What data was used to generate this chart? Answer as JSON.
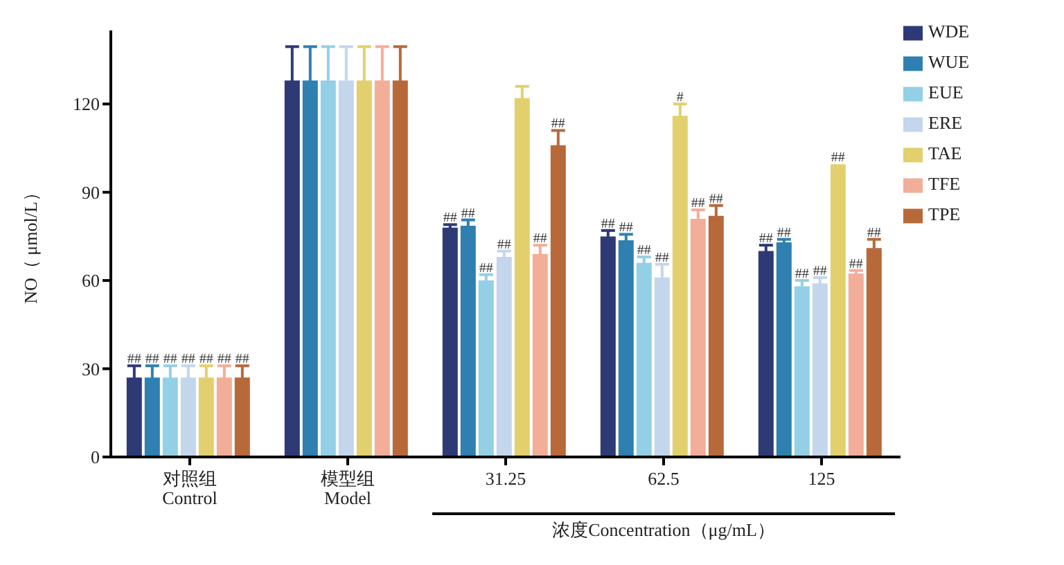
{
  "chart_data": {
    "type": "bar",
    "ylabel": "NO（ μmol/L）",
    "xlabel": "浓度Concentration（μg/mL）",
    "categories": [
      "对照组\nControl",
      "模型组\nModel",
      "31.25",
      "62.5",
      "125"
    ],
    "ylim": [
      0,
      145
    ],
    "yticks": [
      0,
      30,
      60,
      90,
      120
    ],
    "grid": false,
    "legend": "top right",
    "series": [
      {
        "name": "WDE",
        "color": "#2e3a76",
        "values": [
          27,
          128,
          78,
          75,
          70
        ],
        "errors": [
          4,
          11.5,
          1,
          2,
          2
        ],
        "value_labels": [
          "##",
          null,
          "##",
          "##",
          "##"
        ]
      },
      {
        "name": "WUE",
        "color": "#2f80b0",
        "values": [
          27,
          128,
          78.6,
          73.7,
          73
        ],
        "errors": [
          4,
          11.5,
          2,
          2,
          1
        ],
        "value_labels": [
          "##",
          null,
          "##",
          "##",
          "##"
        ]
      },
      {
        "name": "EUE",
        "color": "#93d0e6",
        "values": [
          27,
          128,
          60,
          66,
          58
        ],
        "errors": [
          4,
          11.5,
          2,
          2,
          2
        ],
        "value_labels": [
          "##",
          null,
          "##",
          "##",
          "##"
        ]
      },
      {
        "name": "ERE",
        "color": "#c3d6ec",
        "values": [
          27,
          128,
          68,
          61,
          59
        ],
        "errors": [
          4,
          11.5,
          2,
          4.5,
          2
        ],
        "value_labels": [
          "##",
          null,
          "##",
          "##",
          "##"
        ]
      },
      {
        "name": "TAE",
        "color": "#e2d06e",
        "values": [
          27,
          128,
          122,
          116,
          99.5
        ],
        "errors": [
          4,
          11.5,
          4,
          4,
          null
        ],
        "value_labels": [
          "##",
          null,
          null,
          "#",
          "##"
        ]
      },
      {
        "name": "TFE",
        "color": "#f2ae98",
        "values": [
          27,
          128,
          69,
          81,
          62.4
        ],
        "errors": [
          4,
          11.5,
          3,
          3,
          1
        ],
        "value_labels": [
          "##",
          null,
          "##",
          "##",
          "##"
        ]
      },
      {
        "name": "TPE",
        "color": "#b8693a",
        "values": [
          27,
          128,
          106,
          82,
          71
        ],
        "errors": [
          4,
          11.5,
          5,
          3.5,
          3
        ],
        "value_labels": [
          "##",
          null,
          "##",
          "##",
          "##"
        ]
      }
    ]
  }
}
